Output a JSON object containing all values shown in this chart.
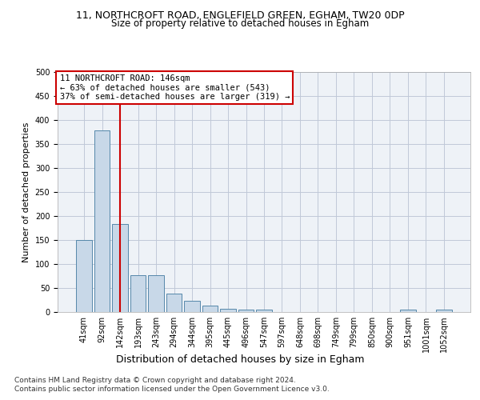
{
  "title_line1": "11, NORTHCROFT ROAD, ENGLEFIELD GREEN, EGHAM, TW20 0DP",
  "title_line2": "Size of property relative to detached houses in Egham",
  "xlabel": "Distribution of detached houses by size in Egham",
  "ylabel": "Number of detached properties",
  "categories": [
    "41sqm",
    "92sqm",
    "142sqm",
    "193sqm",
    "243sqm",
    "294sqm",
    "344sqm",
    "395sqm",
    "445sqm",
    "496sqm",
    "547sqm",
    "597sqm",
    "648sqm",
    "698sqm",
    "749sqm",
    "799sqm",
    "850sqm",
    "900sqm",
    "951sqm",
    "1001sqm",
    "1052sqm"
  ],
  "values": [
    150,
    378,
    183,
    76,
    76,
    38,
    23,
    14,
    7,
    5,
    5,
    0,
    0,
    0,
    0,
    0,
    0,
    0,
    5,
    0,
    5
  ],
  "bar_color": "#c8d8e8",
  "bar_edge_color": "#5588aa",
  "vline_x": 2,
  "vline_color": "#cc0000",
  "annotation_text": "11 NORTHCROFT ROAD: 146sqm\n← 63% of detached houses are smaller (543)\n37% of semi-detached houses are larger (319) →",
  "annotation_box_color": "#ffffff",
  "annotation_box_edge": "#cc0000",
  "ylim": [
    0,
    500
  ],
  "yticks": [
    0,
    50,
    100,
    150,
    200,
    250,
    300,
    350,
    400,
    450,
    500
  ],
  "footer_line1": "Contains HM Land Registry data © Crown copyright and database right 2024.",
  "footer_line2": "Contains public sector information licensed under the Open Government Licence v3.0.",
  "background_color": "#eef2f7",
  "title1_fontsize": 9,
  "title2_fontsize": 8.5,
  "axis_label_fontsize": 8,
  "tick_fontsize": 7,
  "annotation_fontsize": 7.5,
  "footer_fontsize": 6.5
}
